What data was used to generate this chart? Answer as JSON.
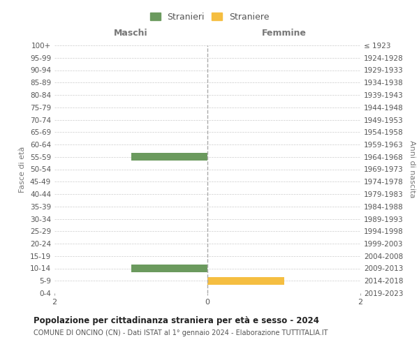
{
  "age_groups": [
    "100+",
    "95-99",
    "90-94",
    "85-89",
    "80-84",
    "75-79",
    "70-74",
    "65-69",
    "60-64",
    "55-59",
    "50-54",
    "45-49",
    "40-44",
    "35-39",
    "30-34",
    "25-29",
    "20-24",
    "15-19",
    "10-14",
    "5-9",
    "0-4"
  ],
  "birth_years": [
    "≤ 1923",
    "1924-1928",
    "1929-1933",
    "1934-1938",
    "1939-1943",
    "1944-1948",
    "1949-1953",
    "1954-1958",
    "1959-1963",
    "1964-1968",
    "1969-1973",
    "1974-1978",
    "1979-1983",
    "1984-1988",
    "1989-1993",
    "1994-1998",
    "1999-2003",
    "2004-2008",
    "2009-2013",
    "2014-2018",
    "2019-2023"
  ],
  "males": [
    0,
    0,
    0,
    0,
    0,
    0,
    0,
    0,
    0,
    1,
    0,
    0,
    0,
    0,
    0,
    0,
    0,
    0,
    1,
    0,
    0
  ],
  "females": [
    0,
    0,
    0,
    0,
    0,
    0,
    0,
    0,
    0,
    0,
    0,
    0,
    0,
    0,
    0,
    0,
    0,
    0,
    0,
    1,
    0
  ],
  "male_color": "#6b9a5e",
  "female_color": "#f5be41",
  "xlim": 2,
  "title": "Popolazione per cittadinanza straniera per età e sesso - 2024",
  "subtitle": "COMUNE DI ONCINO (CN) - Dati ISTAT al 1° gennaio 2024 - Elaborazione TUTTITALIA.IT",
  "ylabel_left": "Fasce di età",
  "ylabel_right": "Anni di nascita",
  "legend_male": "Stranieri",
  "legend_female": "Straniere",
  "maschi_label": "Maschi",
  "femmine_label": "Femmine",
  "bg_color": "#ffffff",
  "grid_color": "#cccccc",
  "axis_label_color": "#777777",
  "tick_label_color": "#555555"
}
